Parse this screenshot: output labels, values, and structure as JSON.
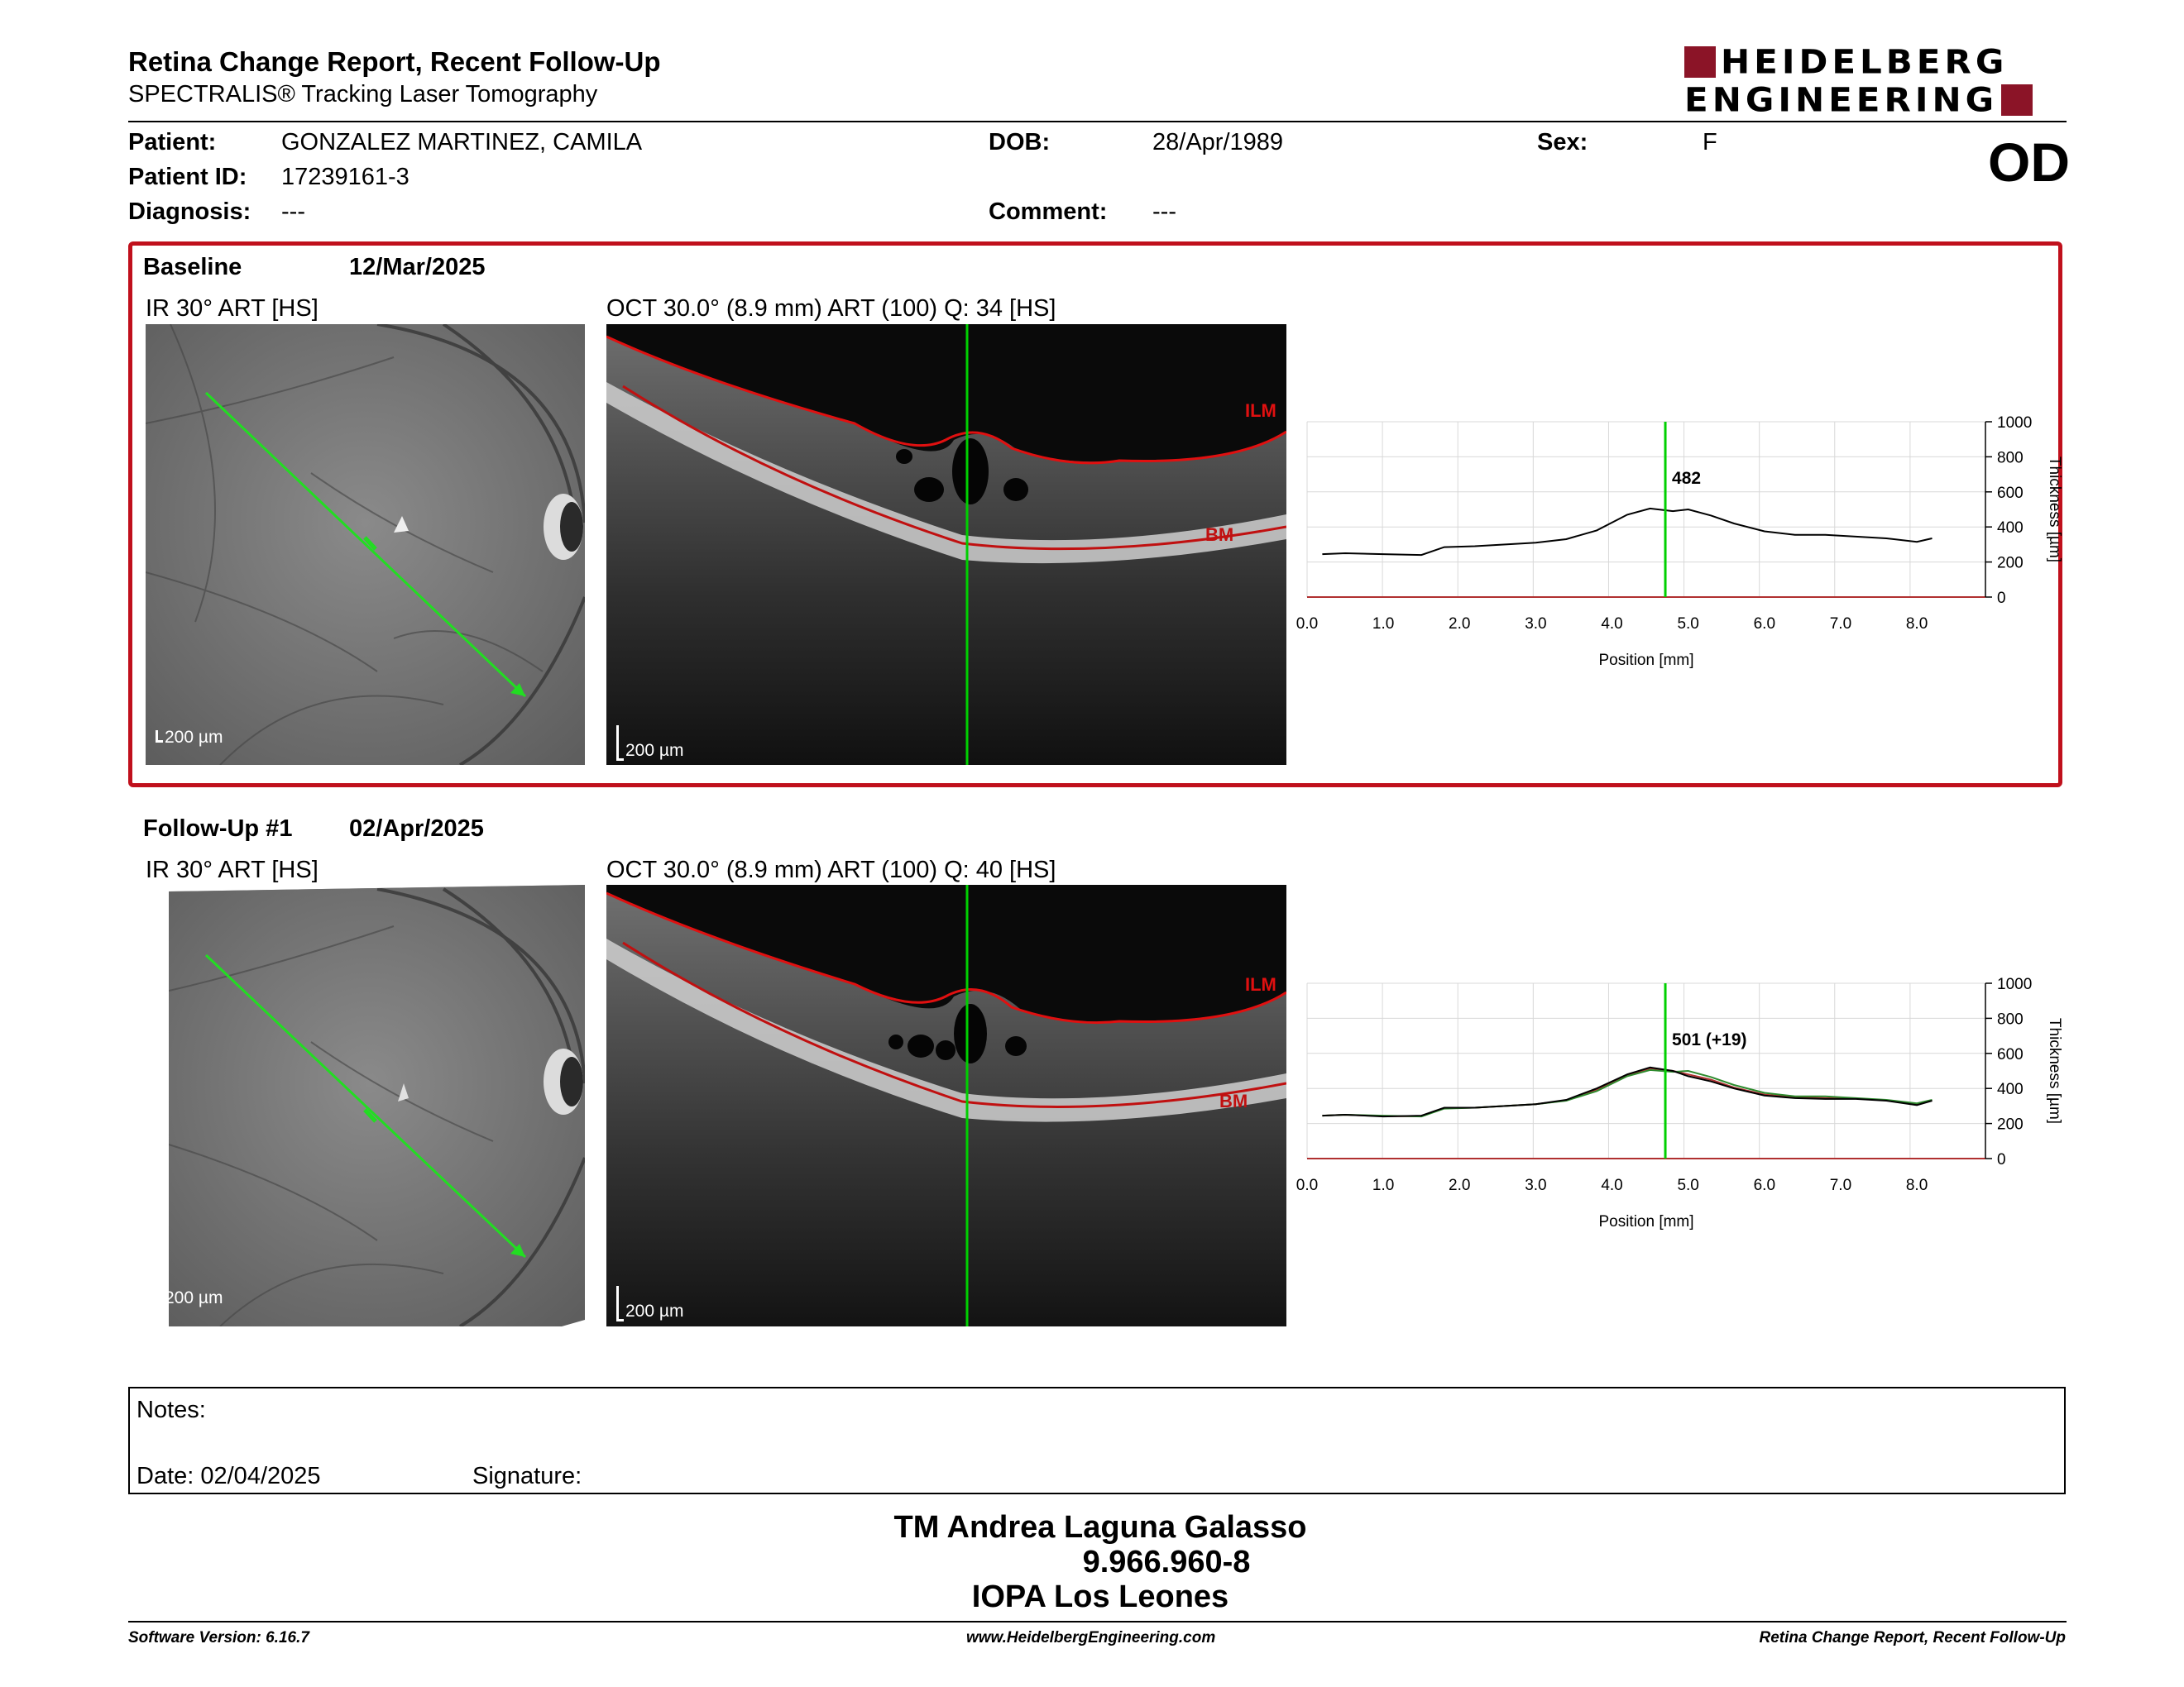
{
  "header": {
    "title": "Retina Change Report, Recent Follow-Up",
    "subtitle": "SPECTRALIS® Tracking Laser Tomography",
    "logo_line1": "HEIDELBERG",
    "logo_line2": "ENGINEERING",
    "eye": "OD"
  },
  "patient": {
    "name_label": "Patient:",
    "name": "GONZALEZ MARTINEZ, CAMILA",
    "id_label": "Patient ID:",
    "id": "17239161-3",
    "diagnosis_label": "Diagnosis:",
    "diagnosis": "---",
    "dob_label": "DOB:",
    "dob": "28/Apr/1989",
    "comment_label": "Comment:",
    "comment": "---",
    "sex_label": "Sex:",
    "sex": "F"
  },
  "baseline": {
    "label": "Baseline",
    "date": "12/Mar/2025",
    "ir_caption": "IR 30° ART [HS]",
    "oct_caption": "OCT 30.0° (8.9 mm) ART (100) Q: 34 [HS]",
    "scale": "200 µm",
    "ilm": "ILM",
    "bm": "BM"
  },
  "followup": {
    "label": "Follow-Up #1",
    "date": "02/Apr/2025",
    "ir_caption": "IR 30° ART [HS]",
    "oct_caption": "OCT 30.0° (8.9 mm) ART (100) Q: 40 [HS]",
    "scale": "200 µm",
    "ilm": "ILM",
    "bm": "BM"
  },
  "chart_data": [
    {
      "type": "line",
      "xlabel": "Position [mm]",
      "ylabel": "Thickness [µm]",
      "xlim": [
        0,
        8.9
      ],
      "ylim": [
        0,
        1000
      ],
      "x_ticks": [
        "0.0",
        "1.0",
        "2.0",
        "3.0",
        "4.0",
        "5.0",
        "6.0",
        "7.0",
        "8.0"
      ],
      "y_ticks": [
        "0",
        "200",
        "400",
        "600",
        "800",
        "1000"
      ],
      "cursor_x": 4.7,
      "cursor_label": "482",
      "series": [
        {
          "color": "#000000",
          "x": [
            0.2,
            0.5,
            1.0,
            1.5,
            1.8,
            2.2,
            2.6,
            3.0,
            3.4,
            3.8,
            4.2,
            4.5,
            4.8,
            5.0,
            5.3,
            5.6,
            6.0,
            6.4,
            6.8,
            7.2,
            7.6,
            8.0,
            8.2
          ],
          "y": [
            245,
            250,
            245,
            240,
            285,
            290,
            300,
            310,
            330,
            380,
            470,
            505,
            490,
            500,
            465,
            420,
            375,
            355,
            355,
            345,
            335,
            315,
            335
          ]
        }
      ]
    },
    {
      "type": "line",
      "xlabel": "Position [mm]",
      "ylabel": "Thickness [µm]",
      "xlim": [
        0,
        8.9
      ],
      "ylim": [
        0,
        1000
      ],
      "x_ticks": [
        "0.0",
        "1.0",
        "2.0",
        "3.0",
        "4.0",
        "5.0",
        "6.0",
        "7.0",
        "8.0"
      ],
      "y_ticks": [
        "0",
        "200",
        "400",
        "600",
        "800",
        "1000"
      ],
      "cursor_x": 4.7,
      "cursor_label": "501 (+19)",
      "series": [
        {
          "color": "#000000",
          "x": [
            0.2,
            0.5,
            1.0,
            1.5,
            1.8,
            2.2,
            2.6,
            3.0,
            3.4,
            3.8,
            4.2,
            4.5,
            4.8,
            5.0,
            5.3,
            5.6,
            6.0,
            6.4,
            6.8,
            7.2,
            7.6,
            8.0,
            8.2
          ],
          "y": [
            245,
            250,
            240,
            245,
            290,
            290,
            300,
            310,
            335,
            400,
            480,
            520,
            500,
            470,
            440,
            400,
            360,
            345,
            340,
            340,
            330,
            305,
            330
          ]
        },
        {
          "color": "#2e8b2e",
          "x": [
            0.2,
            0.5,
            1.0,
            1.5,
            1.8,
            2.2,
            2.6,
            3.0,
            3.4,
            3.8,
            4.2,
            4.5,
            4.8,
            5.0,
            5.3,
            5.6,
            6.0,
            6.4,
            6.8,
            7.2,
            7.6,
            8.0,
            8.2
          ],
          "y": [
            245,
            250,
            245,
            240,
            285,
            290,
            300,
            310,
            330,
            385,
            470,
            505,
            495,
            500,
            465,
            420,
            375,
            355,
            355,
            345,
            335,
            315,
            335
          ]
        },
        {
          "color": "#b03030",
          "x": [
            0.2,
            0.5,
            1.0,
            1.5,
            1.8,
            2.2,
            2.6,
            3.0,
            3.4,
            3.8,
            4.2,
            4.5,
            4.8,
            5.0,
            5.3,
            5.6,
            6.0,
            6.4,
            6.8,
            7.2,
            7.6,
            8.0,
            8.2
          ],
          "y": [
            245,
            250,
            242,
            242,
            288,
            290,
            300,
            310,
            332,
            395,
            475,
            515,
            500,
            480,
            450,
            405,
            365,
            350,
            345,
            342,
            332,
            308,
            332
          ]
        }
      ]
    }
  ],
  "notes": {
    "notes_label": "Notes:",
    "date_label": "Date: 02/04/2025",
    "signature_label": "Signature:"
  },
  "signature": {
    "name": "TM Andrea Laguna Galasso",
    "rut": "9.966.960-8",
    "clinic": "IOPA Los Leones"
  },
  "footer": {
    "software": "Software Version: 6.16.7",
    "website": "www.HeidelbergEngineering.com",
    "report": "Retina Change Report, Recent Follow-Up"
  },
  "colors": {
    "accent": "#c0101c",
    "logo": "#8b1427",
    "scan_line": "#00d000"
  }
}
